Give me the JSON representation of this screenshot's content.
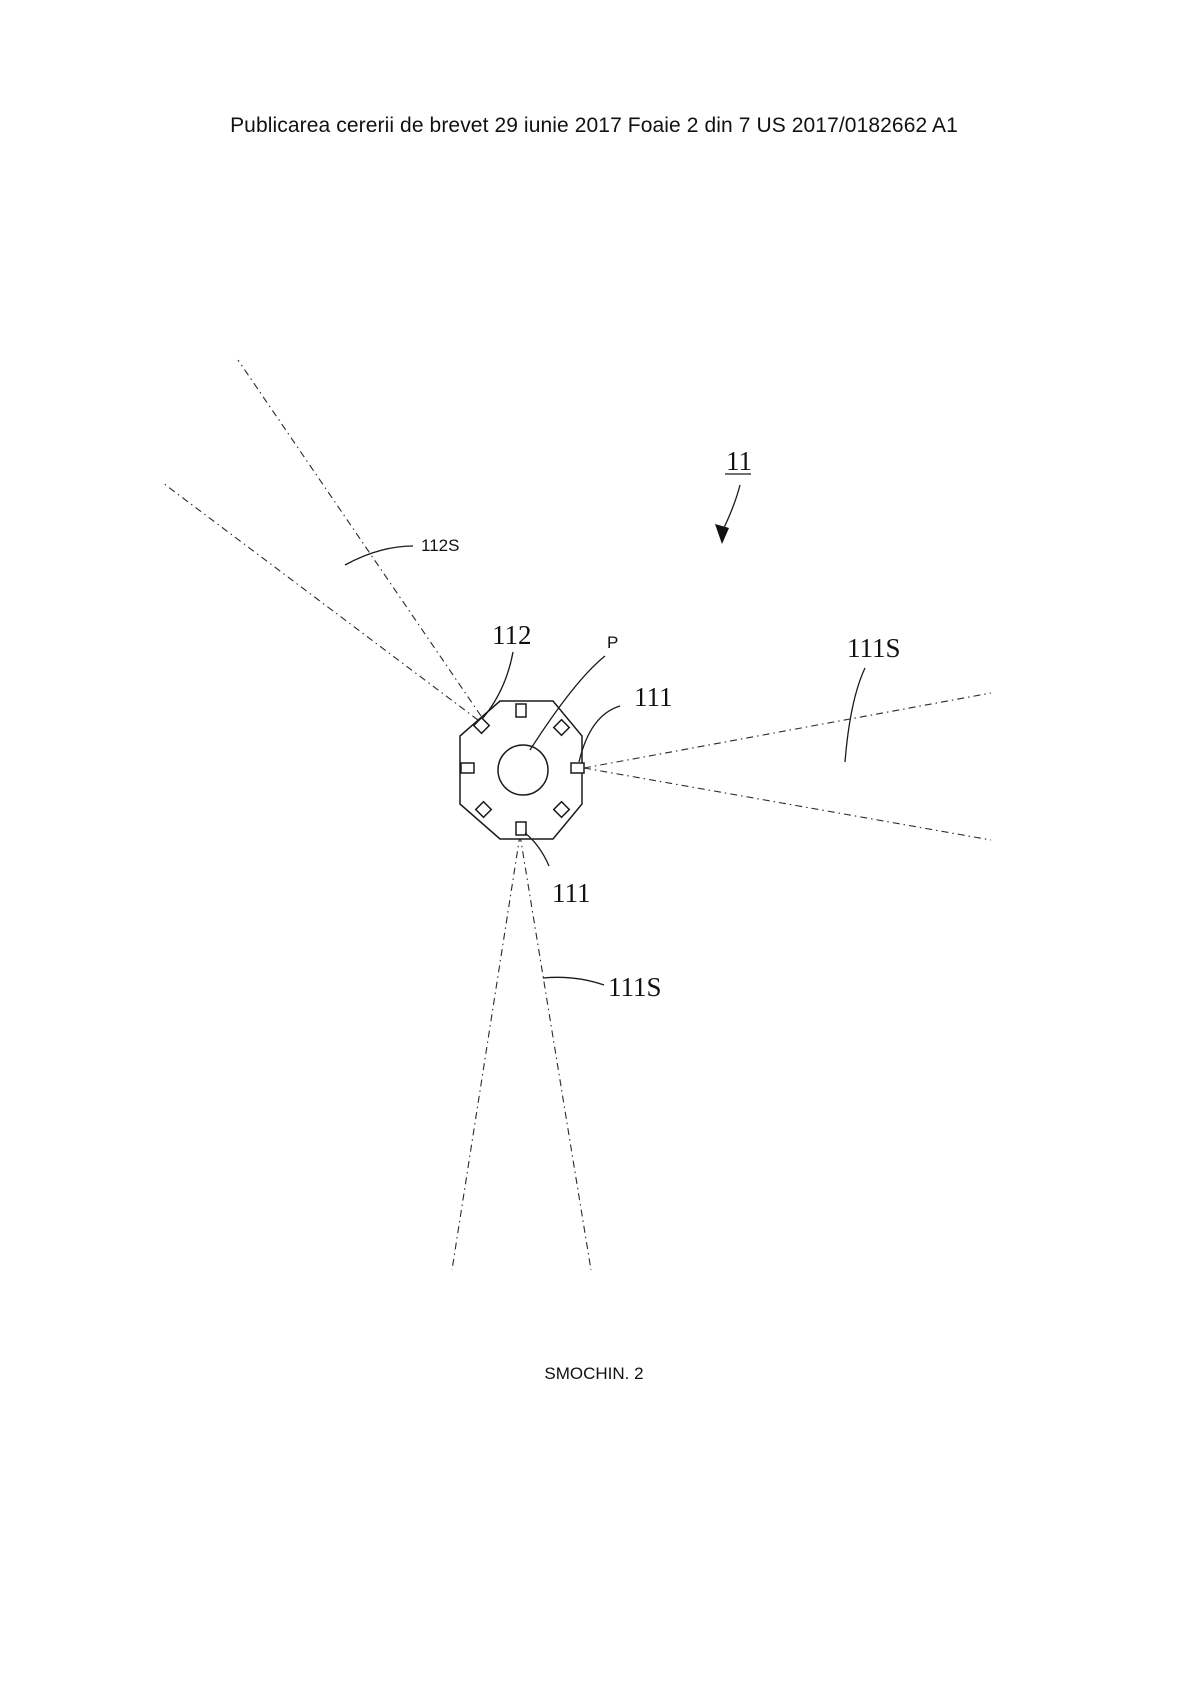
{
  "header": {
    "text": "Publicarea cererii de brevet 29 iunie 2017 Foaie 2 din 7 US 2017/0182662 A1"
  },
  "figure": {
    "label": "SMOCHIN. 2",
    "references": {
      "assembly": "11",
      "light_112": "112",
      "beam_112": "112S",
      "center": "P",
      "light_111_right": "111",
      "beam_111_right": "111S",
      "light_111_bottom": "111",
      "beam_111_bottom": "111S"
    }
  }
}
